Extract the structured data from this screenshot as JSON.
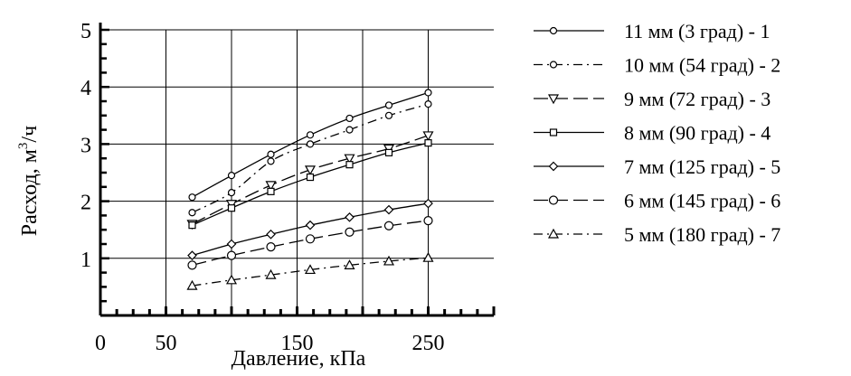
{
  "chart_data": {
    "type": "line",
    "xlabel": "Давление, кПа",
    "ylabel": {
      "main": "Расход, м",
      "sup": "3",
      "tail": "/ч"
    },
    "xlim": [
      0,
      300
    ],
    "ylim": [
      0,
      5
    ],
    "x_ticks": [
      0,
      50,
      150,
      250
    ],
    "y_ticks": [
      1,
      2,
      3,
      4,
      5
    ],
    "grid": true,
    "legend_position": "right",
    "series": [
      {
        "name": "11 мм (3 град) - 1",
        "marker": "circle-small",
        "dash": "solid",
        "x": [
          70,
          100,
          130,
          160,
          190,
          220,
          250
        ],
        "y": [
          2.07,
          2.45,
          2.82,
          3.16,
          3.45,
          3.68,
          3.9
        ]
      },
      {
        "name": "10 мм (54 град) - 2",
        "marker": "circle-small",
        "dash": "dashdot",
        "x": [
          70,
          100,
          130,
          160,
          190,
          220,
          250
        ],
        "y": [
          1.8,
          2.15,
          2.7,
          3.0,
          3.25,
          3.5,
          3.7
        ]
      },
      {
        "name": "9 мм (72 град) - 3",
        "marker": "triangle-down",
        "dash": "dashed",
        "x": [
          70,
          100,
          130,
          160,
          190,
          220,
          250
        ],
        "y": [
          1.6,
          1.95,
          2.28,
          2.55,
          2.75,
          2.92,
          3.15
        ]
      },
      {
        "name": "8 мм (90 град) - 4",
        "marker": "square",
        "dash": "solid",
        "x": [
          70,
          100,
          130,
          160,
          190,
          220,
          250
        ],
        "y": [
          1.58,
          1.88,
          2.17,
          2.42,
          2.64,
          2.85,
          3.02
        ]
      },
      {
        "name": "7 мм (125 град) - 5",
        "marker": "diamond",
        "dash": "solid",
        "x": [
          70,
          100,
          130,
          160,
          190,
          220,
          250
        ],
        "y": [
          1.05,
          1.25,
          1.42,
          1.58,
          1.72,
          1.85,
          1.96
        ]
      },
      {
        "name": "6 мм (145 град) - 6",
        "marker": "circle",
        "dash": "dashed",
        "x": [
          70,
          100,
          130,
          160,
          190,
          220,
          250
        ],
        "y": [
          0.88,
          1.05,
          1.2,
          1.34,
          1.46,
          1.57,
          1.66
        ]
      },
      {
        "name": "5 мм (180 град) - 7",
        "marker": "triangle-up",
        "dash": "dashdot",
        "x": [
          70,
          100,
          130,
          160,
          190,
          220,
          250
        ],
        "y": [
          0.52,
          0.62,
          0.71,
          0.8,
          0.88,
          0.95,
          1.01
        ]
      }
    ]
  }
}
